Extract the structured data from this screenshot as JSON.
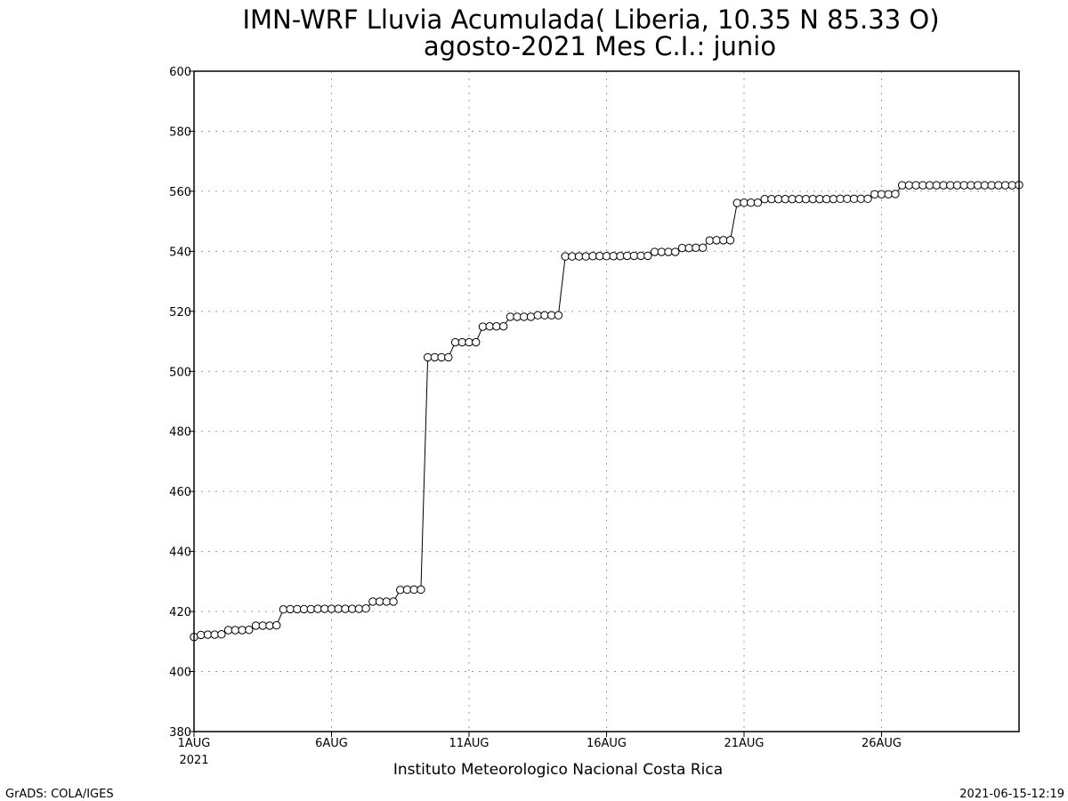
{
  "chart_data": {
    "type": "line",
    "title": "IMN-WRF  Lluvia Acumulada( Liberia, 10.35  N 85.33  O)",
    "subtitle": "agosto-2021 Mes C.I.: junio",
    "xlabel": "Instituto Meteorologico Nacional Costa Rica",
    "ylabel": "",
    "ylim": [
      380,
      600
    ],
    "yticks": [
      380,
      400,
      420,
      440,
      460,
      480,
      500,
      520,
      540,
      560,
      580,
      600
    ],
    "xlim": [
      1,
      31
    ],
    "xticks": [
      {
        "value": 1,
        "label": "1AUG",
        "sublabel": "2021"
      },
      {
        "value": 6,
        "label": "6AUG",
        "sublabel": ""
      },
      {
        "value": 11,
        "label": "11AUG",
        "sublabel": ""
      },
      {
        "value": 16,
        "label": "16AUG",
        "sublabel": ""
      },
      {
        "value": 21,
        "label": "21AUG",
        "sublabel": ""
      },
      {
        "value": 26,
        "label": "26AUG",
        "sublabel": ""
      }
    ],
    "grid": true,
    "marker": "open-circle",
    "line_color": "#000000",
    "series": [
      {
        "values": [
          411.5,
          412.2,
          412.3,
          412.3,
          412.4,
          413.8,
          413.8,
          413.8,
          413.9,
          415.3,
          415.3,
          415.3,
          415.4,
          420.7,
          420.8,
          420.8,
          420.8,
          420.8,
          420.9,
          420.9,
          420.9,
          420.9,
          420.9,
          420.9,
          420.9,
          421.0,
          423.3,
          423.3,
          423.3,
          423.3,
          427.2,
          427.3,
          427.3,
          427.3,
          504.7,
          504.7,
          504.7,
          504.7,
          509.7,
          509.7,
          509.7,
          509.7,
          514.9,
          515.0,
          515.0,
          515.0,
          518.2,
          518.2,
          518.2,
          518.2,
          518.7,
          518.7,
          518.7,
          518.7,
          538.3,
          538.3,
          538.3,
          538.3,
          538.4,
          538.4,
          538.4,
          538.4,
          538.4,
          538.5,
          538.5,
          538.5,
          538.5,
          539.8,
          539.8,
          539.8,
          539.8,
          541.1,
          541.1,
          541.2,
          541.2,
          543.6,
          543.7,
          543.7,
          543.7,
          556.1,
          556.2,
          556.2,
          556.2,
          557.4,
          557.4,
          557.4,
          557.4,
          557.4,
          557.4,
          557.4,
          557.4,
          557.4,
          557.4,
          557.4,
          557.5,
          557.5,
          557.5,
          557.5,
          557.5,
          559.0,
          559.0,
          559.0,
          559.1,
          562.0,
          562.0,
          562.0,
          562.0,
          562.0,
          562.0,
          562.0,
          562.0,
          562.0,
          562.0,
          562.0,
          562.0,
          562.0,
          562.0,
          562.0,
          562.0,
          562.0,
          562.1
        ],
        "x_start": 1,
        "x_step": 0.25
      }
    ]
  },
  "footer": {
    "left": "GrADS: COLA/IGES",
    "right": "2021-06-15-12:19"
  }
}
